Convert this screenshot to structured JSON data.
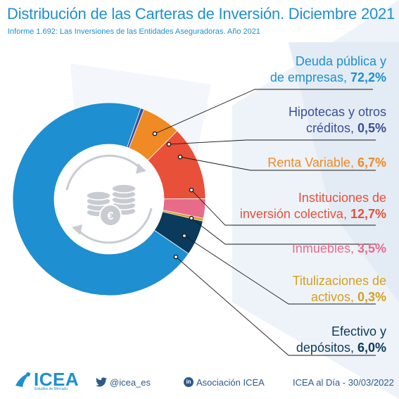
{
  "header": {
    "title": "Distribución de las Carteras de Inversión. Diciembre 2021",
    "subtitle": "Informe 1.692: Las Inversiones de las Entidades Aseguradoras. Año 2021"
  },
  "chart_data": {
    "type": "pie",
    "style": "donut",
    "unit": "%",
    "categories": [
      "Deuda pública y de empresas",
      "Hipotecas y otros créditos",
      "Renta Variable",
      "Instituciones de inversión colectiva",
      "Inmuebles",
      "Titulizaciones de activos",
      "Efectivo y depósitos"
    ],
    "values": [
      72.2,
      0.5,
      6.7,
      12.7,
      3.5,
      0.3,
      6.0
    ],
    "value_labels": [
      "72,2%",
      "0,5%",
      "6,7%",
      "12,7%",
      "3,5%",
      "0,3%",
      "6,0%"
    ],
    "colors": [
      "#1e8fd0",
      "#3a4f9a",
      "#f08a24",
      "#e8503a",
      "#e86b8a",
      "#d4a020",
      "#0a3a5c"
    ],
    "label_lines": [
      [
        "Deuda pública y",
        "de empresas, "
      ],
      [
        "Hipotecas y otros",
        "créditos, "
      ],
      [
        "Renta Variable, "
      ],
      [
        "Instituciones de",
        "inversión colectiva, "
      ],
      [
        "Inmuebles, "
      ],
      [
        "Titulizaciones de",
        "activos, "
      ],
      [
        "Efectivo y",
        "depósitos, "
      ]
    ],
    "label_colors": [
      "#1e8fd0",
      "#3a4f9a",
      "#f08a24",
      "#e8503a",
      "#e86b8a",
      "#d4a020",
      "#0a3a5c"
    ],
    "legend": "right"
  },
  "footer": {
    "brand": "ICEA",
    "brand_tagline": "Estudios de Mercado",
    "twitter_handle": "@icea_es",
    "linkedin_label": "Asociación ICEA",
    "linkedin_icon": "in",
    "date_label": "ICEA al Día - 30/03/2022"
  }
}
